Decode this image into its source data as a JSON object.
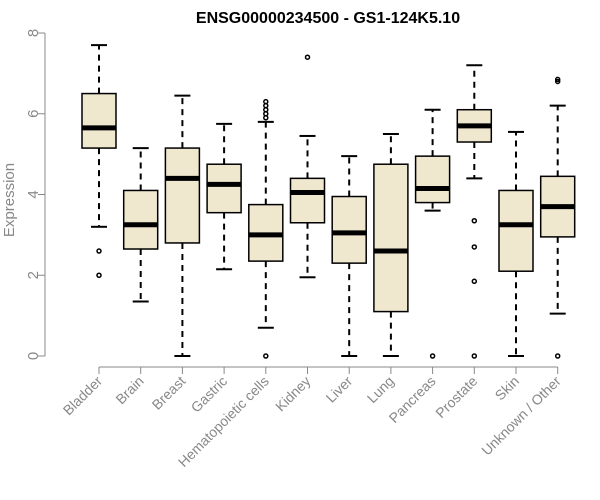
{
  "chart_data": {
    "type": "boxplot",
    "title": "ENSG00000234500 - GS1-124K5.10",
    "xlabel": "",
    "ylabel": "Expression",
    "ylim": [
      0,
      8
    ],
    "yticks": [
      0,
      2,
      4,
      6,
      8
    ],
    "box_fill": "#efe8cf",
    "categories": [
      "Bladder",
      "Brain",
      "Breast",
      "Gastric",
      "Hematopoietic cells",
      "Kidney",
      "Liver",
      "Lung",
      "Pancreas",
      "Prostate",
      "Skin",
      "Unknown / Other"
    ],
    "series": [
      {
        "name": "Bladder",
        "whisker_low": 3.2,
        "q1": 5.15,
        "median": 5.65,
        "q3": 6.5,
        "whisker_high": 7.7,
        "outliers": [
          2.6,
          2.0
        ]
      },
      {
        "name": "Brain",
        "whisker_low": 1.35,
        "q1": 2.65,
        "median": 3.25,
        "q3": 4.1,
        "whisker_high": 5.15,
        "outliers": []
      },
      {
        "name": "Breast",
        "whisker_low": 0.0,
        "q1": 2.8,
        "median": 4.4,
        "q3": 5.15,
        "whisker_high": 6.45,
        "outliers": []
      },
      {
        "name": "Gastric",
        "whisker_low": 2.15,
        "q1": 3.55,
        "median": 4.25,
        "q3": 4.75,
        "whisker_high": 5.75,
        "outliers": []
      },
      {
        "name": "Hematopoietic cells",
        "whisker_low": 0.7,
        "q1": 2.35,
        "median": 3.0,
        "q3": 3.75,
        "whisker_high": 5.8,
        "outliers": [
          0.0,
          5.9,
          6.0,
          6.1,
          6.2,
          6.3
        ]
      },
      {
        "name": "Kidney",
        "whisker_low": 1.95,
        "q1": 3.3,
        "median": 4.05,
        "q3": 4.4,
        "whisker_high": 5.45,
        "outliers": [
          7.4
        ]
      },
      {
        "name": "Liver",
        "whisker_low": 0.0,
        "q1": 2.3,
        "median": 3.05,
        "q3": 3.95,
        "whisker_high": 4.95,
        "outliers": []
      },
      {
        "name": "Lung",
        "whisker_low": 0.0,
        "q1": 1.1,
        "median": 2.6,
        "q3": 4.75,
        "whisker_high": 5.5,
        "outliers": []
      },
      {
        "name": "Pancreas",
        "whisker_low": 3.6,
        "q1": 3.8,
        "median": 4.15,
        "q3": 4.95,
        "whisker_high": 6.1,
        "outliers": [
          0.0
        ]
      },
      {
        "name": "Prostate",
        "whisker_low": 4.4,
        "q1": 5.3,
        "median": 5.7,
        "q3": 6.1,
        "whisker_high": 7.2,
        "outliers": [
          3.35,
          2.7,
          1.85,
          0.0
        ]
      },
      {
        "name": "Skin",
        "whisker_low": 0.0,
        "q1": 2.1,
        "median": 3.25,
        "q3": 4.1,
        "whisker_high": 5.55,
        "outliers": []
      },
      {
        "name": "Unknown / Other",
        "whisker_low": 1.05,
        "q1": 2.95,
        "median": 3.7,
        "q3": 4.45,
        "whisker_high": 6.2,
        "outliers": [
          6.8,
          6.85,
          0.0
        ]
      }
    ]
  }
}
